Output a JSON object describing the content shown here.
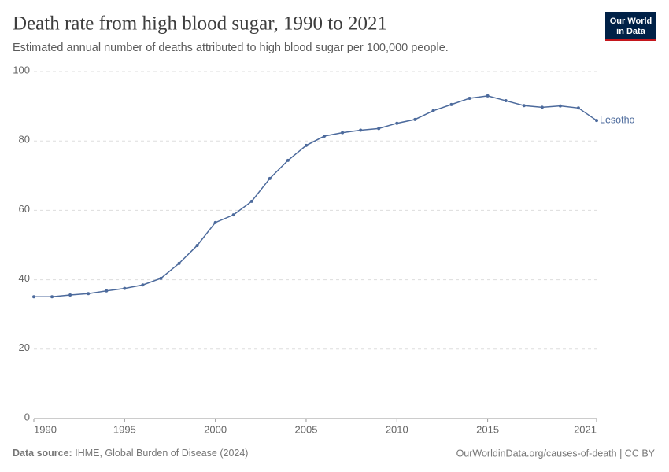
{
  "logo": [
    "Our World",
    "in Data"
  ],
  "chart_data": {
    "type": "line",
    "title": "Death rate from high blood sugar, 1990 to 2021",
    "subtitle": "Estimated annual number of deaths attributed to high blood sugar per 100,000 people.",
    "x": [
      1990,
      1991,
      1992,
      1993,
      1994,
      1995,
      1996,
      1997,
      1998,
      1999,
      2000,
      2001,
      2002,
      2003,
      2004,
      2005,
      2006,
      2007,
      2008,
      2009,
      2010,
      2011,
      2012,
      2013,
      2014,
      2015,
      2016,
      2017,
      2018,
      2019,
      2020,
      2021
    ],
    "series": [
      {
        "name": "Lesotho",
        "color": "#4c6a9c",
        "values": [
          35.1,
          35.1,
          35.6,
          36.0,
          36.8,
          37.5,
          38.5,
          40.4,
          44.7,
          49.9,
          56.5,
          58.7,
          62.6,
          69.2,
          74.4,
          78.7,
          81.4,
          82.4,
          83.1,
          83.6,
          85.1,
          86.2,
          88.7,
          90.5,
          92.3,
          93.0,
          91.6,
          90.2,
          89.7,
          90.1,
          89.5,
          85.9
        ]
      }
    ],
    "xlim": [
      1990,
      2021
    ],
    "xticks": [
      1990,
      1995,
      2000,
      2005,
      2010,
      2015,
      2021
    ],
    "ylim": [
      0,
      100
    ],
    "yticks": [
      0,
      20,
      40,
      60,
      80,
      100
    ],
    "grid": true,
    "source_label": "Data source:",
    "source": "IHME, Global Burden of Disease (2024)",
    "credit": "OurWorldinData.org/causes-of-death | CC BY"
  }
}
